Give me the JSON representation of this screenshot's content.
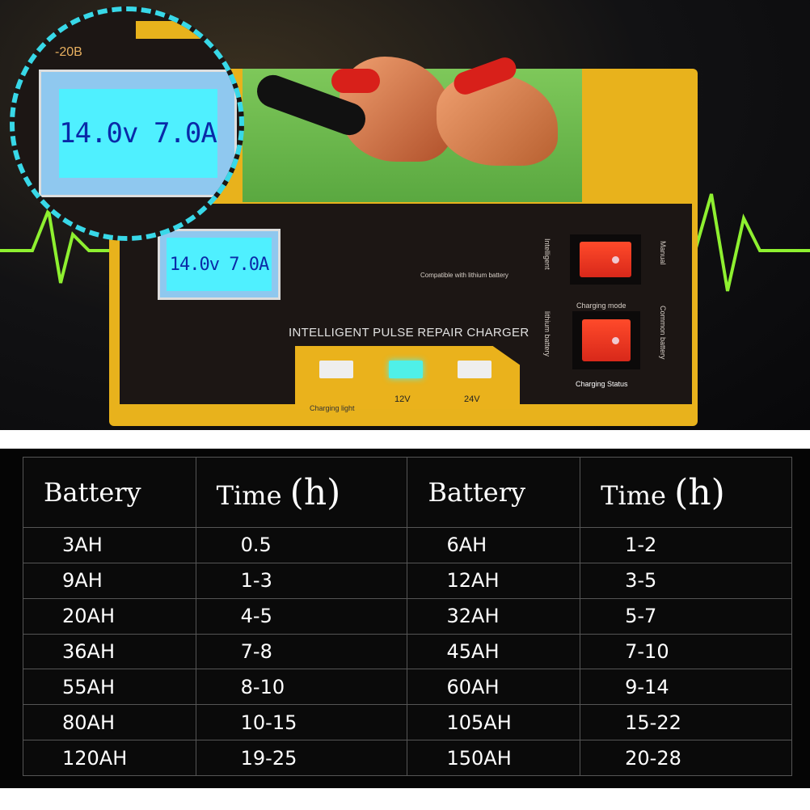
{
  "product": {
    "model_fragment": "-20B",
    "lcd_reading": "14.0v 7.0A",
    "title": "INTELLIGENT PULSE REPAIR CHARGER",
    "compat_note": "Compatible with lithium battery",
    "switch_labels": {
      "intelligent": "Intelligent",
      "manual": "Manual",
      "charging_mode": "Charging mode",
      "lithium": "lithium battery",
      "common": "Common battery",
      "status": "Charging Status"
    },
    "lights": [
      {
        "label": "Charging light",
        "color": "#eeeeee"
      },
      {
        "label": "12V",
        "color": "#4ff0e8"
      },
      {
        "label": "24V",
        "color": "#eeeeee"
      }
    ],
    "colors": {
      "body": "#e8b21c",
      "top": "#6ab84c",
      "lcd": "#4ff0ff",
      "switch": "#e0301e",
      "dash": "#38d8e8"
    }
  },
  "table": {
    "headers": [
      {
        "text": "Battery"
      },
      {
        "text": "Time",
        "unit": "(h)"
      },
      {
        "text": "Battery"
      },
      {
        "text": "Time",
        "unit": "(h)"
      }
    ],
    "rows": [
      [
        "3AH",
        "0.5",
        "6AH",
        "1-2"
      ],
      [
        "9AH",
        "1-3",
        "12AH",
        "3-5"
      ],
      [
        "20AH",
        "4-5",
        "32AH",
        "5-7"
      ],
      [
        "36AH",
        "7-8",
        "45AH",
        "7-10"
      ],
      [
        "55AH",
        "8-10",
        "60AH",
        "9-14"
      ],
      [
        "80AH",
        "10-15",
        "105AH",
        "15-22"
      ],
      [
        "120AH",
        "19-25",
        "150AH",
        "20-28"
      ]
    ]
  }
}
